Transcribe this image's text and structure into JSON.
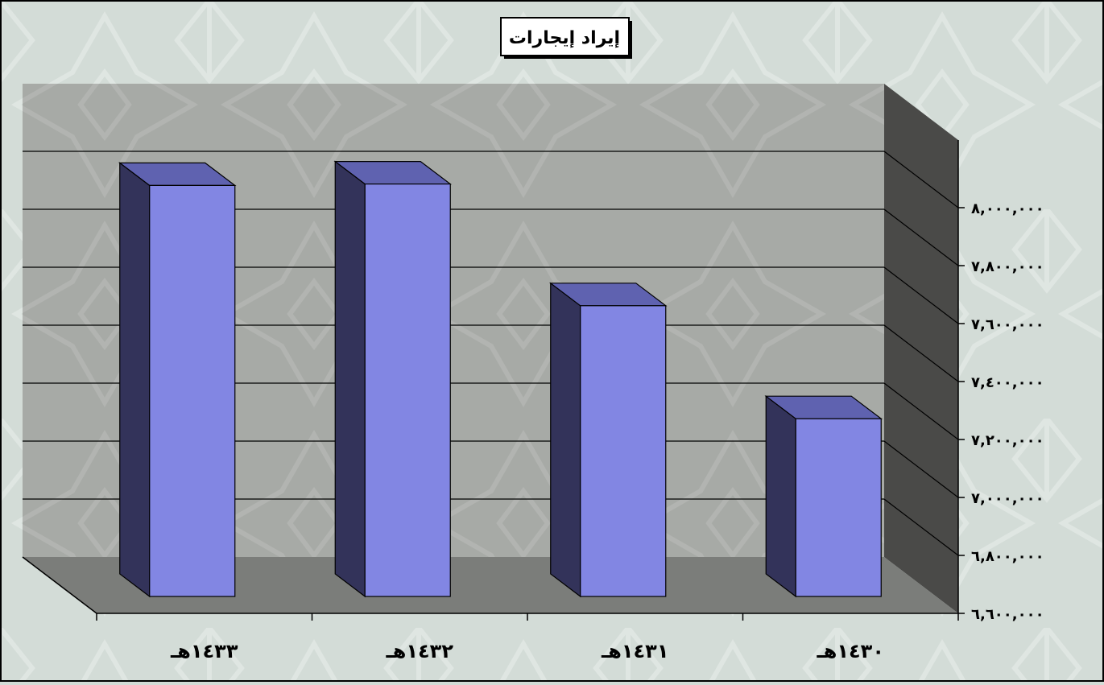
{
  "chart_data": {
    "type": "bar",
    "title": "إيراد إيجارات",
    "categories": [
      "١٤٣٣هـ",
      "١٤٣٢هـ",
      "١٤٣١هـ",
      "١٤٣٠هـ"
    ],
    "values": [
      7960000,
      7965000,
      7545000,
      7155000
    ],
    "ylim": [
      6600000,
      8000000
    ],
    "yticks": [
      6600000,
      6800000,
      7000000,
      7200000,
      7400000,
      7600000,
      7800000,
      8000000
    ],
    "ytick_labels": [
      "٦,٦٠٠,٠٠٠",
      "٦,٨٠٠,٠٠٠",
      "٧,٠٠٠,٠٠٠",
      "٧,٢٠٠,٠٠٠",
      "٧,٤٠٠,٠٠٠",
      "٧,٦٠٠,٠٠٠",
      "٧,٨٠٠,٠٠٠",
      "٨,٠٠٠,٠٠٠"
    ],
    "grid": true,
    "legend": "none",
    "colors": {
      "bar_front": "#8286e3",
      "bar_side": "#33335a",
      "bar_top": "#5f62b0",
      "back_wall": "#a7aaa6",
      "side_wall": "#4a4a48",
      "floor": "#7b7d7a",
      "background": "#d3dcd7"
    }
  }
}
